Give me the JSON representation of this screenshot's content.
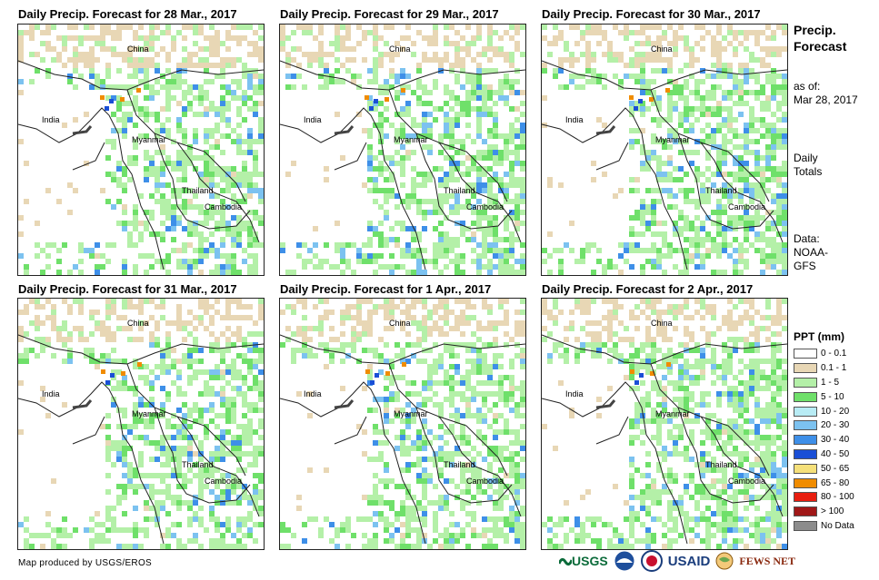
{
  "panels": [
    {
      "title": "Daily Precip. Forecast for 28 Mar., 2017",
      "labels": {
        "china": "China",
        "india": "India",
        "myanmar": "Myanmar",
        "thailand": "Thailand",
        "cambodia": "Cambodia"
      }
    },
    {
      "title": "Daily Precip. Forecast for 29 Mar., 2017",
      "labels": {
        "china": "China",
        "india": "India",
        "myanmar": "Myanmar",
        "thailand": "Thailand",
        "cambodia": "Cambodia"
      }
    },
    {
      "title": "Daily Precip. Forecast for 30 Mar., 2017",
      "labels": {
        "china": "China",
        "india": "India",
        "myanmar": "Myanmar",
        "thailand": "Thailand",
        "cambodia": "Cambodia"
      }
    },
    {
      "title": "Daily Precip. Forecast for 31 Mar., 2017",
      "labels": {
        "china": "China",
        "india": "India",
        "myanmar": "Myanmar",
        "thailand": "Thailand",
        "cambodia": "Cambodia"
      }
    },
    {
      "title": "Daily Precip. Forecast for 1 Apr., 2017",
      "labels": {
        "china": "China",
        "india": "India",
        "myanmar": "Myanmar",
        "thailand": "Thailand",
        "cambodia": "Cambodia"
      }
    },
    {
      "title": "Daily Precip. Forecast for 2 Apr., 2017",
      "labels": {
        "china": "China",
        "india": "India",
        "myanmar": "Myanmar",
        "thailand": "Thailand",
        "cambodia": "Cambodia"
      }
    }
  ],
  "side": {
    "title_line1": "Precip.",
    "title_line2": "Forecast",
    "asof_line1": "as of:",
    "asof_line2": "Mar 28, 2017",
    "totals_line1": "Daily",
    "totals_line2": "Totals",
    "data_line1": "Data:",
    "data_line2": "NOAA-",
    "data_line3": "GFS"
  },
  "legend": {
    "title": "PPT (mm)",
    "items": [
      {
        "label": "0 - 0.1",
        "color": "#ffffff"
      },
      {
        "label": "0.1 - 1",
        "color": "#e8d7b5"
      },
      {
        "label": "1 - 5",
        "color": "#b4f0a8"
      },
      {
        "label": "5 - 10",
        "color": "#6fe06a"
      },
      {
        "label": "10 - 20",
        "color": "#b8ecf5"
      },
      {
        "label": "20 - 30",
        "color": "#7cc2f0"
      },
      {
        "label": "30 - 40",
        "color": "#3e8fe8"
      },
      {
        "label": "40 - 50",
        "color": "#1a4fd6"
      },
      {
        "label": "50 - 65",
        "color": "#f5e07a"
      },
      {
        "label": "65 - 80",
        "color": "#f08c00"
      },
      {
        "label": "80 - 100",
        "color": "#e81e10"
      },
      {
        "label": "> 100",
        "color": "#a01818"
      },
      {
        "label": "No Data",
        "color": "#8c8c8c"
      }
    ]
  },
  "footer": "Map produced by USGS/EROS",
  "logos": {
    "usgs": "USGS",
    "usaid": "USAID",
    "fewsnet": "FEWS NET"
  }
}
